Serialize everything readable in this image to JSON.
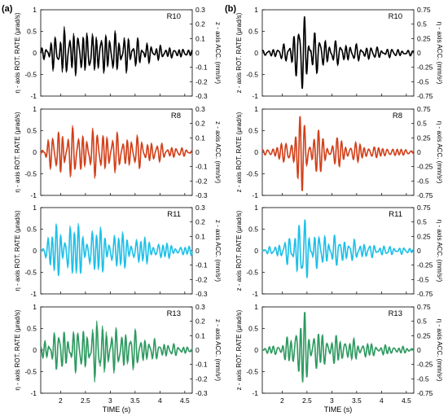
{
  "panel_labels": {
    "left": "(a)",
    "right": "(b)"
  },
  "chart_data": [
    {
      "type": "line",
      "panel": "(a)",
      "station": "R10",
      "color": "#000000",
      "ylabel_left": "η - axis ROT. RATE  (μrad/s)",
      "ylabel_right": "z - axis ACC. (mm/s²)",
      "ylim_left": [
        -1,
        1
      ],
      "ylim_right": [
        -0.3,
        0.3
      ],
      "xlim": [
        1.6,
        4.65
      ],
      "yticks_left": [
        "1",
        "0.5",
        "0",
        "-0.5",
        "-1"
      ],
      "yticks_right": [
        "0.3",
        "0.2",
        "0.1",
        "0",
        "-0.1",
        "-0.2",
        "-0.3"
      ],
      "x": [
        1.6,
        1.8,
        2.0,
        2.2,
        2.4,
        2.6,
        2.8,
        3.0,
        3.2,
        3.4,
        3.6,
        3.8,
        4.0,
        4.2,
        4.4,
        4.6
      ],
      "series": [
        {
          "values": [
            0.08,
            0.3,
            0.5,
            0.55,
            0.5,
            0.5,
            0.45,
            0.5,
            0.42,
            0.38,
            0.28,
            0.2,
            0.16,
            0.12,
            0.1,
            0.08
          ]
        },
        {
          "values": [
            0.08,
            0.34,
            0.6,
            0.62,
            0.55,
            0.58,
            0.52,
            0.56,
            0.48,
            0.44,
            0.3,
            0.22,
            0.18,
            0.13,
            0.11,
            0.09
          ]
        }
      ]
    },
    {
      "type": "line",
      "panel": "(a)",
      "station": "R8",
      "color": "#d2401a",
      "ylabel_left": "η - axis ROT. RATE  (μrad/s)",
      "ylabel_right": "z - axis ACC. (mm/s²)",
      "ylim_left": [
        -1,
        1
      ],
      "ylim_right": [
        -0.3,
        0.3
      ],
      "xlim": [
        1.6,
        4.65
      ],
      "yticks_left": [
        "1",
        "0.5",
        "0",
        "-0.5",
        "-1"
      ],
      "yticks_right": [
        "0.3",
        "0.2",
        "0.1",
        "0",
        "-0.1",
        "-0.2",
        "-0.3"
      ],
      "x": [
        1.6,
        1.8,
        2.0,
        2.2,
        2.4,
        2.6,
        2.8,
        3.0,
        3.2,
        3.4,
        3.6,
        3.8,
        4.0,
        4.2,
        4.4,
        4.6
      ],
      "series": [
        {
          "values": [
            0.1,
            0.35,
            0.6,
            0.55,
            0.5,
            0.5,
            0.55,
            0.45,
            0.4,
            0.38,
            0.35,
            0.25,
            0.2,
            0.15,
            0.1,
            0.08
          ]
        },
        {
          "values": [
            0.1,
            0.4,
            0.65,
            0.6,
            0.55,
            0.55,
            0.62,
            0.5,
            0.45,
            0.42,
            0.38,
            0.28,
            0.22,
            0.16,
            0.11,
            0.09
          ]
        }
      ]
    },
    {
      "type": "line",
      "panel": "(a)",
      "station": "R11",
      "color": "#1ec0e8",
      "ylabel_left": "η - axis ROT. RATE  (μrad/s)",
      "ylabel_right": "z - axis ACC. (mm/s²)",
      "ylim_left": [
        -1,
        1
      ],
      "ylim_right": [
        -0.3,
        0.3
      ],
      "xlim": [
        1.6,
        4.65
      ],
      "yticks_left": [
        "1",
        "0.5",
        "0",
        "-0.5",
        "-1"
      ],
      "yticks_right": [
        "0.3",
        "0.2",
        "0.1",
        "0",
        "-0.1",
        "-0.2",
        "-0.3"
      ],
      "x": [
        1.6,
        1.8,
        2.0,
        2.2,
        2.4,
        2.6,
        2.8,
        3.0,
        3.2,
        3.4,
        3.6,
        3.8,
        4.0,
        4.2,
        4.4,
        4.6
      ],
      "series": [
        {
          "values": [
            0.1,
            0.4,
            0.7,
            0.65,
            0.55,
            0.55,
            0.5,
            0.45,
            0.4,
            0.35,
            0.3,
            0.25,
            0.2,
            0.15,
            0.12,
            0.1
          ]
        },
        {
          "values": [
            0.1,
            0.45,
            0.75,
            0.7,
            0.6,
            0.6,
            0.55,
            0.5,
            0.45,
            0.4,
            0.34,
            0.28,
            0.22,
            0.17,
            0.13,
            0.11
          ]
        }
      ]
    },
    {
      "type": "line",
      "panel": "(a)",
      "station": "R13",
      "color": "#2e9a60",
      "ylabel_left": "η - axis ROT. RATE  (μrad/s)",
      "ylabel_right": "z - axis ACC. (mm/s²)",
      "ylim_left": [
        -1,
        1
      ],
      "ylim_right": [
        -0.3,
        0.3
      ],
      "xlim": [
        1.6,
        4.65
      ],
      "yticks_left": [
        "1",
        "0.5",
        "0",
        "-0.5",
        "-1"
      ],
      "yticks_right": [
        "0.3",
        "0.2",
        "0.1",
        "0",
        "-0.1",
        "-0.2",
        "-0.3"
      ],
      "x": [
        1.6,
        1.8,
        2.0,
        2.2,
        2.4,
        2.6,
        2.8,
        3.0,
        3.2,
        3.4,
        3.6,
        3.8,
        4.0,
        4.2,
        4.4,
        4.6
      ],
      "series": [
        {
          "values": [
            0.15,
            0.35,
            0.5,
            0.45,
            0.5,
            0.55,
            0.65,
            0.5,
            0.45,
            0.5,
            0.35,
            0.25,
            0.2,
            0.15,
            0.1,
            0.08
          ]
        },
        {
          "values": [
            0.15,
            0.38,
            0.52,
            0.48,
            0.55,
            0.6,
            0.85,
            0.55,
            0.5,
            0.55,
            0.38,
            0.28,
            0.22,
            0.16,
            0.11,
            0.09
          ]
        }
      ]
    },
    {
      "type": "line",
      "panel": "(b)",
      "station": "R10",
      "color": "#000000",
      "ylabel_left": "z - axis ROT.  RATE  (μrad/s)",
      "ylabel_right": "η - axis ACC. (mm/s²)",
      "ylim_left": [
        -1,
        1
      ],
      "ylim_right": [
        -0.75,
        0.75
      ],
      "xlim": [
        1.6,
        4.65
      ],
      "yticks_left": [
        "1",
        "0.5",
        "0",
        "-0.5",
        "-1"
      ],
      "yticks_right": [
        "0.75",
        "0.5",
        "0.25",
        "0",
        "-0.25",
        "-0.5",
        "-0.75"
      ],
      "x": [
        1.6,
        1.8,
        2.0,
        2.2,
        2.4,
        2.6,
        2.8,
        3.0,
        3.2,
        3.4,
        3.6,
        3.8,
        4.0,
        4.2,
        4.4,
        4.6
      ],
      "series": [
        {
          "values": [
            0.05,
            0.1,
            0.15,
            0.4,
            0.95,
            0.6,
            0.35,
            0.3,
            0.25,
            0.2,
            0.18,
            0.15,
            0.12,
            0.1,
            0.08,
            0.06
          ]
        },
        {
          "values": [
            0.05,
            0.1,
            0.15,
            0.38,
            0.85,
            0.55,
            0.33,
            0.28,
            0.23,
            0.19,
            0.17,
            0.14,
            0.11,
            0.09,
            0.07,
            0.05
          ]
        }
      ]
    },
    {
      "type": "line",
      "panel": "(b)",
      "station": "R8",
      "color": "#d2401a",
      "ylabel_left": "z - axis ROT.  RATE  (μrad/s)",
      "ylabel_right": "η - axis ACC. (mm/s²)",
      "ylim_left": [
        -1,
        1
      ],
      "ylim_right": [
        -0.75,
        0.75
      ],
      "xlim": [
        1.6,
        4.65
      ],
      "yticks_left": [
        "1",
        "0.5",
        "0",
        "-0.5",
        "-1"
      ],
      "yticks_right": [
        "0.75",
        "0.5",
        "0.25",
        "0",
        "-0.25",
        "-0.5",
        "-0.75"
      ],
      "x": [
        1.6,
        1.8,
        2.0,
        2.2,
        2.4,
        2.6,
        2.8,
        3.0,
        3.2,
        3.4,
        3.6,
        3.8,
        4.0,
        4.2,
        4.4,
        4.6
      ],
      "series": [
        {
          "values": [
            0.06,
            0.12,
            0.2,
            0.45,
            0.9,
            0.65,
            0.4,
            0.35,
            0.3,
            0.25,
            0.2,
            0.15,
            0.12,
            0.1,
            0.08,
            0.06
          ]
        },
        {
          "values": [
            0.06,
            0.12,
            0.2,
            0.42,
            0.8,
            0.6,
            0.38,
            0.33,
            0.28,
            0.23,
            0.19,
            0.14,
            0.11,
            0.09,
            0.07,
            0.05
          ]
        }
      ]
    },
    {
      "type": "line",
      "panel": "(b)",
      "station": "R11",
      "color": "#1ec0e8",
      "ylabel_left": "z - axis ROT.  RATE  (μrad/s)",
      "ylabel_right": "η - axis ACC. (mm/s²)",
      "ylim_left": [
        -1,
        1
      ],
      "ylim_right": [
        -0.75,
        0.75
      ],
      "xlim": [
        1.6,
        4.65
      ],
      "yticks_left": [
        "1",
        "0.5",
        "0",
        "-0.5",
        "-1"
      ],
      "yticks_right": [
        "0.75",
        "0.5",
        "0.25",
        "0",
        "-0.25",
        "-0.5",
        "-0.75"
      ],
      "x": [
        1.6,
        1.8,
        2.0,
        2.2,
        2.4,
        2.6,
        2.8,
        3.0,
        3.2,
        3.4,
        3.6,
        3.8,
        4.0,
        4.2,
        4.4,
        4.6
      ],
      "series": [
        {
          "values": [
            0.05,
            0.1,
            0.2,
            0.4,
            0.85,
            0.5,
            0.35,
            0.4,
            0.3,
            0.25,
            0.2,
            0.15,
            0.12,
            0.1,
            0.08,
            0.06
          ]
        },
        {
          "values": [
            0.05,
            0.1,
            0.18,
            0.38,
            0.75,
            0.46,
            0.33,
            0.37,
            0.28,
            0.23,
            0.19,
            0.14,
            0.11,
            0.09,
            0.07,
            0.05
          ]
        }
      ]
    },
    {
      "type": "line",
      "panel": "(b)",
      "station": "R13",
      "color": "#2e9a60",
      "ylabel_left": "z - axis ROT.  RATE  (μrad/s)",
      "ylabel_right": "η - axis ACC. (mm/s²)",
      "ylim_left": [
        -1,
        1
      ],
      "ylim_right": [
        -0.75,
        0.75
      ],
      "xlim": [
        1.6,
        4.65
      ],
      "yticks_left": [
        "1",
        "0.5",
        "0",
        "-0.5",
        "-1"
      ],
      "yticks_right": [
        "0.75",
        "0.5",
        "0.25",
        "0",
        "-0.25",
        "-0.5",
        "-0.75"
      ],
      "x": [
        1.6,
        1.8,
        2.0,
        2.2,
        2.4,
        2.6,
        2.8,
        3.0,
        3.2,
        3.4,
        3.6,
        3.8,
        4.0,
        4.2,
        4.4,
        4.6
      ],
      "series": [
        {
          "values": [
            0.05,
            0.1,
            0.18,
            0.4,
            0.95,
            0.55,
            0.4,
            0.35,
            0.3,
            0.25,
            0.2,
            0.15,
            0.12,
            0.1,
            0.08,
            0.06
          ]
        },
        {
          "values": [
            0.05,
            0.1,
            0.17,
            0.37,
            0.85,
            0.5,
            0.37,
            0.32,
            0.27,
            0.22,
            0.18,
            0.13,
            0.1,
            0.08,
            0.06,
            0.05
          ]
        }
      ]
    }
  ],
  "x_axis": {
    "ticks": [
      "2",
      "2.5",
      "3",
      "3.5",
      "4",
      "4.5"
    ],
    "label": "TIME (s)"
  }
}
